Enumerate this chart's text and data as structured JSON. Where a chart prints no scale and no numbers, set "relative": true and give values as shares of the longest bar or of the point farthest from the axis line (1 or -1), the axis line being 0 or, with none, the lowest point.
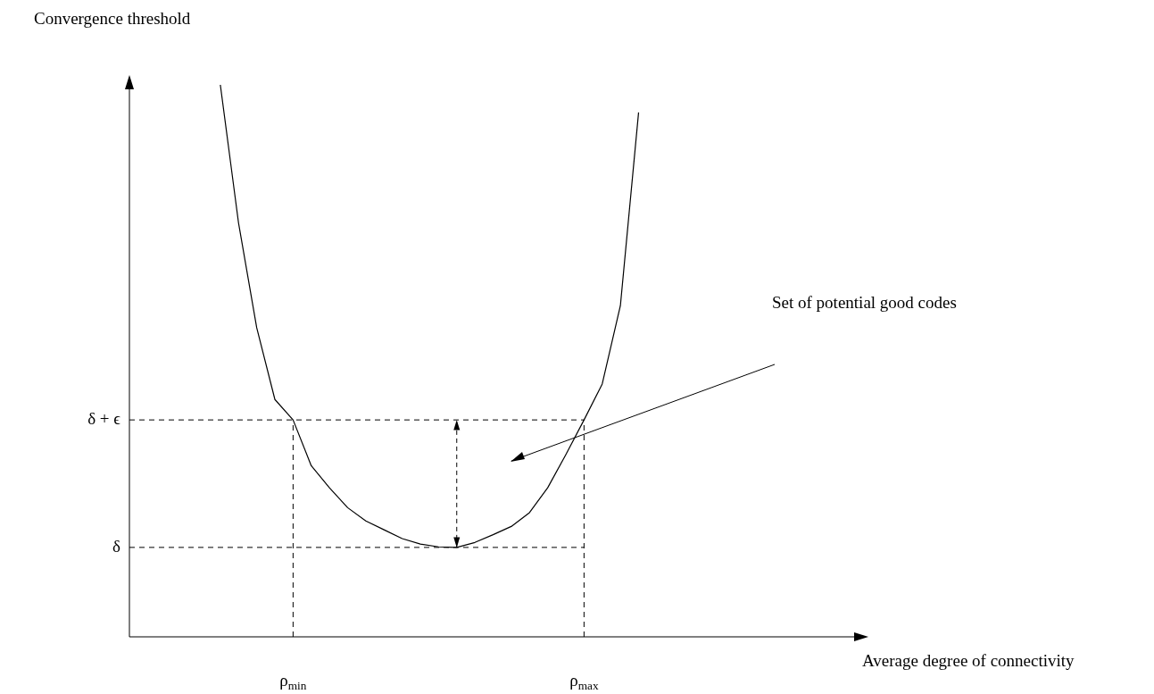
{
  "chart_data": {
    "type": "line",
    "relative": true,
    "xlabel": "Average degree of connectivity",
    "ylabel": "Convergence threshold",
    "categories": [
      null,
      null,
      null,
      null,
      null,
      null,
      null,
      null,
      null,
      "ρ$_{min}$",
      null,
      null,
      null,
      null,
      null,
      null,
      null,
      null,
      null,
      null,
      null,
      null,
      null,
      null,
      null,
      "ρ$_{max}$",
      null,
      null,
      null,
      null,
      null,
      null,
      null,
      null,
      null,
      null,
      null,
      null,
      null,
      null,
      null
    ],
    "series": [
      {
        "color": "#000000",
        "values": [
          null,
          null,
          null,
          null,
          null,
          1.0,
          0.75,
          0.56,
          0.43,
          0.393,
          0.31,
          0.27,
          0.234,
          0.21,
          0.194,
          0.178,
          0.168,
          0.163,
          0.162,
          0.171,
          0.185,
          0.2,
          0.225,
          0.27,
          0.33,
          0.393,
          0.458,
          0.6,
          0.95,
          null,
          null,
          null,
          null,
          null,
          null,
          null,
          null,
          null,
          null,
          null,
          null
        ]
      }
    ],
    "ref_lines": [
      {
        "axis": "y",
        "value": 0.393,
        "label": "δ + ϵ",
        "line_style": "dashed"
      },
      {
        "axis": "y",
        "value": 0.162,
        "label": "δ",
        "line_style": "dashed"
      },
      {
        "axis": "x",
        "value": "ρ$_{min}$",
        "line_style": "dashed"
      },
      {
        "axis": "x",
        "value": "ρ$_{max}$",
        "line_style": "dashed"
      }
    ],
    "annotations": [
      "Set of potential good codes"
    ],
    "legend": false,
    "marker": "none",
    "line_style": "solid"
  }
}
